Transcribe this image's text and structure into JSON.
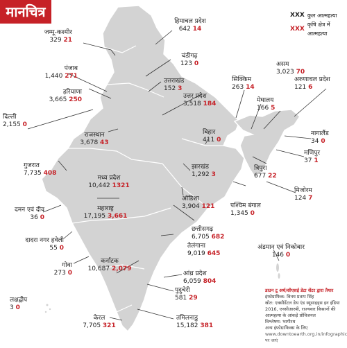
{
  "title": "मानचित्र",
  "legend": {
    "total_symbol": "XXX",
    "total_label": "कुल आत्महत्या",
    "farm_symbol": "XXX",
    "farm_label": "कृषि क्षेत्र में आत्महत्या",
    "total_color": "#222222",
    "farm_color": "#c62127"
  },
  "states": [
    {
      "id": "jammu-kashmir",
      "name": "जम्मू-कश्मीर",
      "total": "329",
      "farm": "21"
    },
    {
      "id": "himachal",
      "name": "हिमाचल प्रदेश",
      "total": "642",
      "farm": "14"
    },
    {
      "id": "punjab",
      "name": "पंजाब",
      "total": "1,440",
      "farm": "271"
    },
    {
      "id": "chandigarh",
      "name": "चंडीगढ़",
      "total": "123",
      "farm": "0"
    },
    {
      "id": "haryana",
      "name": "हरियाणा",
      "total": "3,665",
      "farm": "250"
    },
    {
      "id": "uttarakhand",
      "name": "उत्तराखंड",
      "total": "152",
      "farm": "3"
    },
    {
      "id": "delhi",
      "name": "दिल्ली",
      "total": "2,155",
      "farm": "0"
    },
    {
      "id": "uttar-pradesh",
      "name": "उत्तर प्रदेश",
      "total": "3,518",
      "farm": "184"
    },
    {
      "id": "sikkim",
      "name": "सिक्किम",
      "total": "263",
      "farm": "14"
    },
    {
      "id": "assam",
      "name": "असम",
      "total": "3,023",
      "farm": "70"
    },
    {
      "id": "arunachal",
      "name": "अरुणाचल प्रदेश",
      "total": "121",
      "farm": "6"
    },
    {
      "id": "meghalaya",
      "name": "मेघालय",
      "total": "166",
      "farm": "5"
    },
    {
      "id": "rajasthan",
      "name": "राजस्थान",
      "total": "3,678",
      "farm": "43"
    },
    {
      "id": "bihar",
      "name": "बिहार",
      "total": "411",
      "farm": "0"
    },
    {
      "id": "nagaland",
      "name": "नागालैंड",
      "total": "34",
      "farm": "0"
    },
    {
      "id": "manipur",
      "name": "मणिपुर",
      "total": "37",
      "farm": "1"
    },
    {
      "id": "gujarat",
      "name": "गुजरात",
      "total": "7,735",
      "farm": "408"
    },
    {
      "id": "madhya-pradesh",
      "name": "मध्य प्रदेश",
      "total": "10,442",
      "farm": "1321"
    },
    {
      "id": "jharkhand",
      "name": "झारखंड",
      "total": "1,292",
      "farm": "3"
    },
    {
      "id": "tripura",
      "name": "त्रिपुरा",
      "total": "677",
      "farm": "22"
    },
    {
      "id": "mizoram",
      "name": "मिजोरम",
      "total": "124",
      "farm": "7"
    },
    {
      "id": "odisha",
      "name": "ओडिशा",
      "total": "3,904",
      "farm": "121"
    },
    {
      "id": "west-bengal",
      "name": "पश्चिम बंगाल",
      "total": "1,345",
      "farm": "0"
    },
    {
      "id": "daman-diu",
      "name": "दमन एवं दीव",
      "total": "36",
      "farm": "0"
    },
    {
      "id": "maharashtra",
      "name": "महाराष्ट्र",
      "total": "17,195",
      "farm": "3,661"
    },
    {
      "id": "chhattisgarh",
      "name": "छत्तीसगढ़",
      "total": "6,705",
      "farm": "682"
    },
    {
      "id": "dadra",
      "name": "दादरा नगर हवेली",
      "total": "55",
      "farm": "0"
    },
    {
      "id": "andaman",
      "name": "अंडमान एवं निकोबार",
      "total": "146",
      "farm": "0"
    },
    {
      "id": "telangana",
      "name": "तेलंगाना",
      "total": "9,019",
      "farm": "645"
    },
    {
      "id": "goa",
      "name": "गोवा",
      "total": "273",
      "farm": "0"
    },
    {
      "id": "karnataka",
      "name": "कर्नाटक",
      "total": "10,687",
      "farm": "2,079"
    },
    {
      "id": "andhra",
      "name": "आंध्र प्रदेश",
      "total": "6,059",
      "farm": "804"
    },
    {
      "id": "puducherry",
      "name": "पुदुचेरी",
      "total": "581",
      "farm": "29"
    },
    {
      "id": "lakshadweep",
      "name": "लक्षद्वीप",
      "total": "3",
      "farm": "0"
    },
    {
      "id": "kerala",
      "name": "केरल",
      "total": "7,705",
      "farm": "321"
    },
    {
      "id": "tamil-nadu",
      "name": "तमिलनाडु",
      "total": "15,182",
      "farm": "381"
    }
  ],
  "credits": {
    "source_title": "डाउन टू अर्थ/सीएसई डेटा सेंटर द्वारा तैयार",
    "infographic": "इंफोग्राफिक: विनय प्रताप सिंह",
    "source": "स्रोत: एक्सीडेंटल डेथ एंड स्यूसाइड्स इन इंडिया 2016, एनसीआरबी, राज्यवार किसानों की आत्महत्या के आंकड़े प्रोविजनल",
    "analysis": "विश्लेषण: भागीरथ",
    "more": "अन्य इंफोग्राफिक्स के लिए",
    "url": "www.downtoearth.org.in/infographics पर जाएं"
  }
}
